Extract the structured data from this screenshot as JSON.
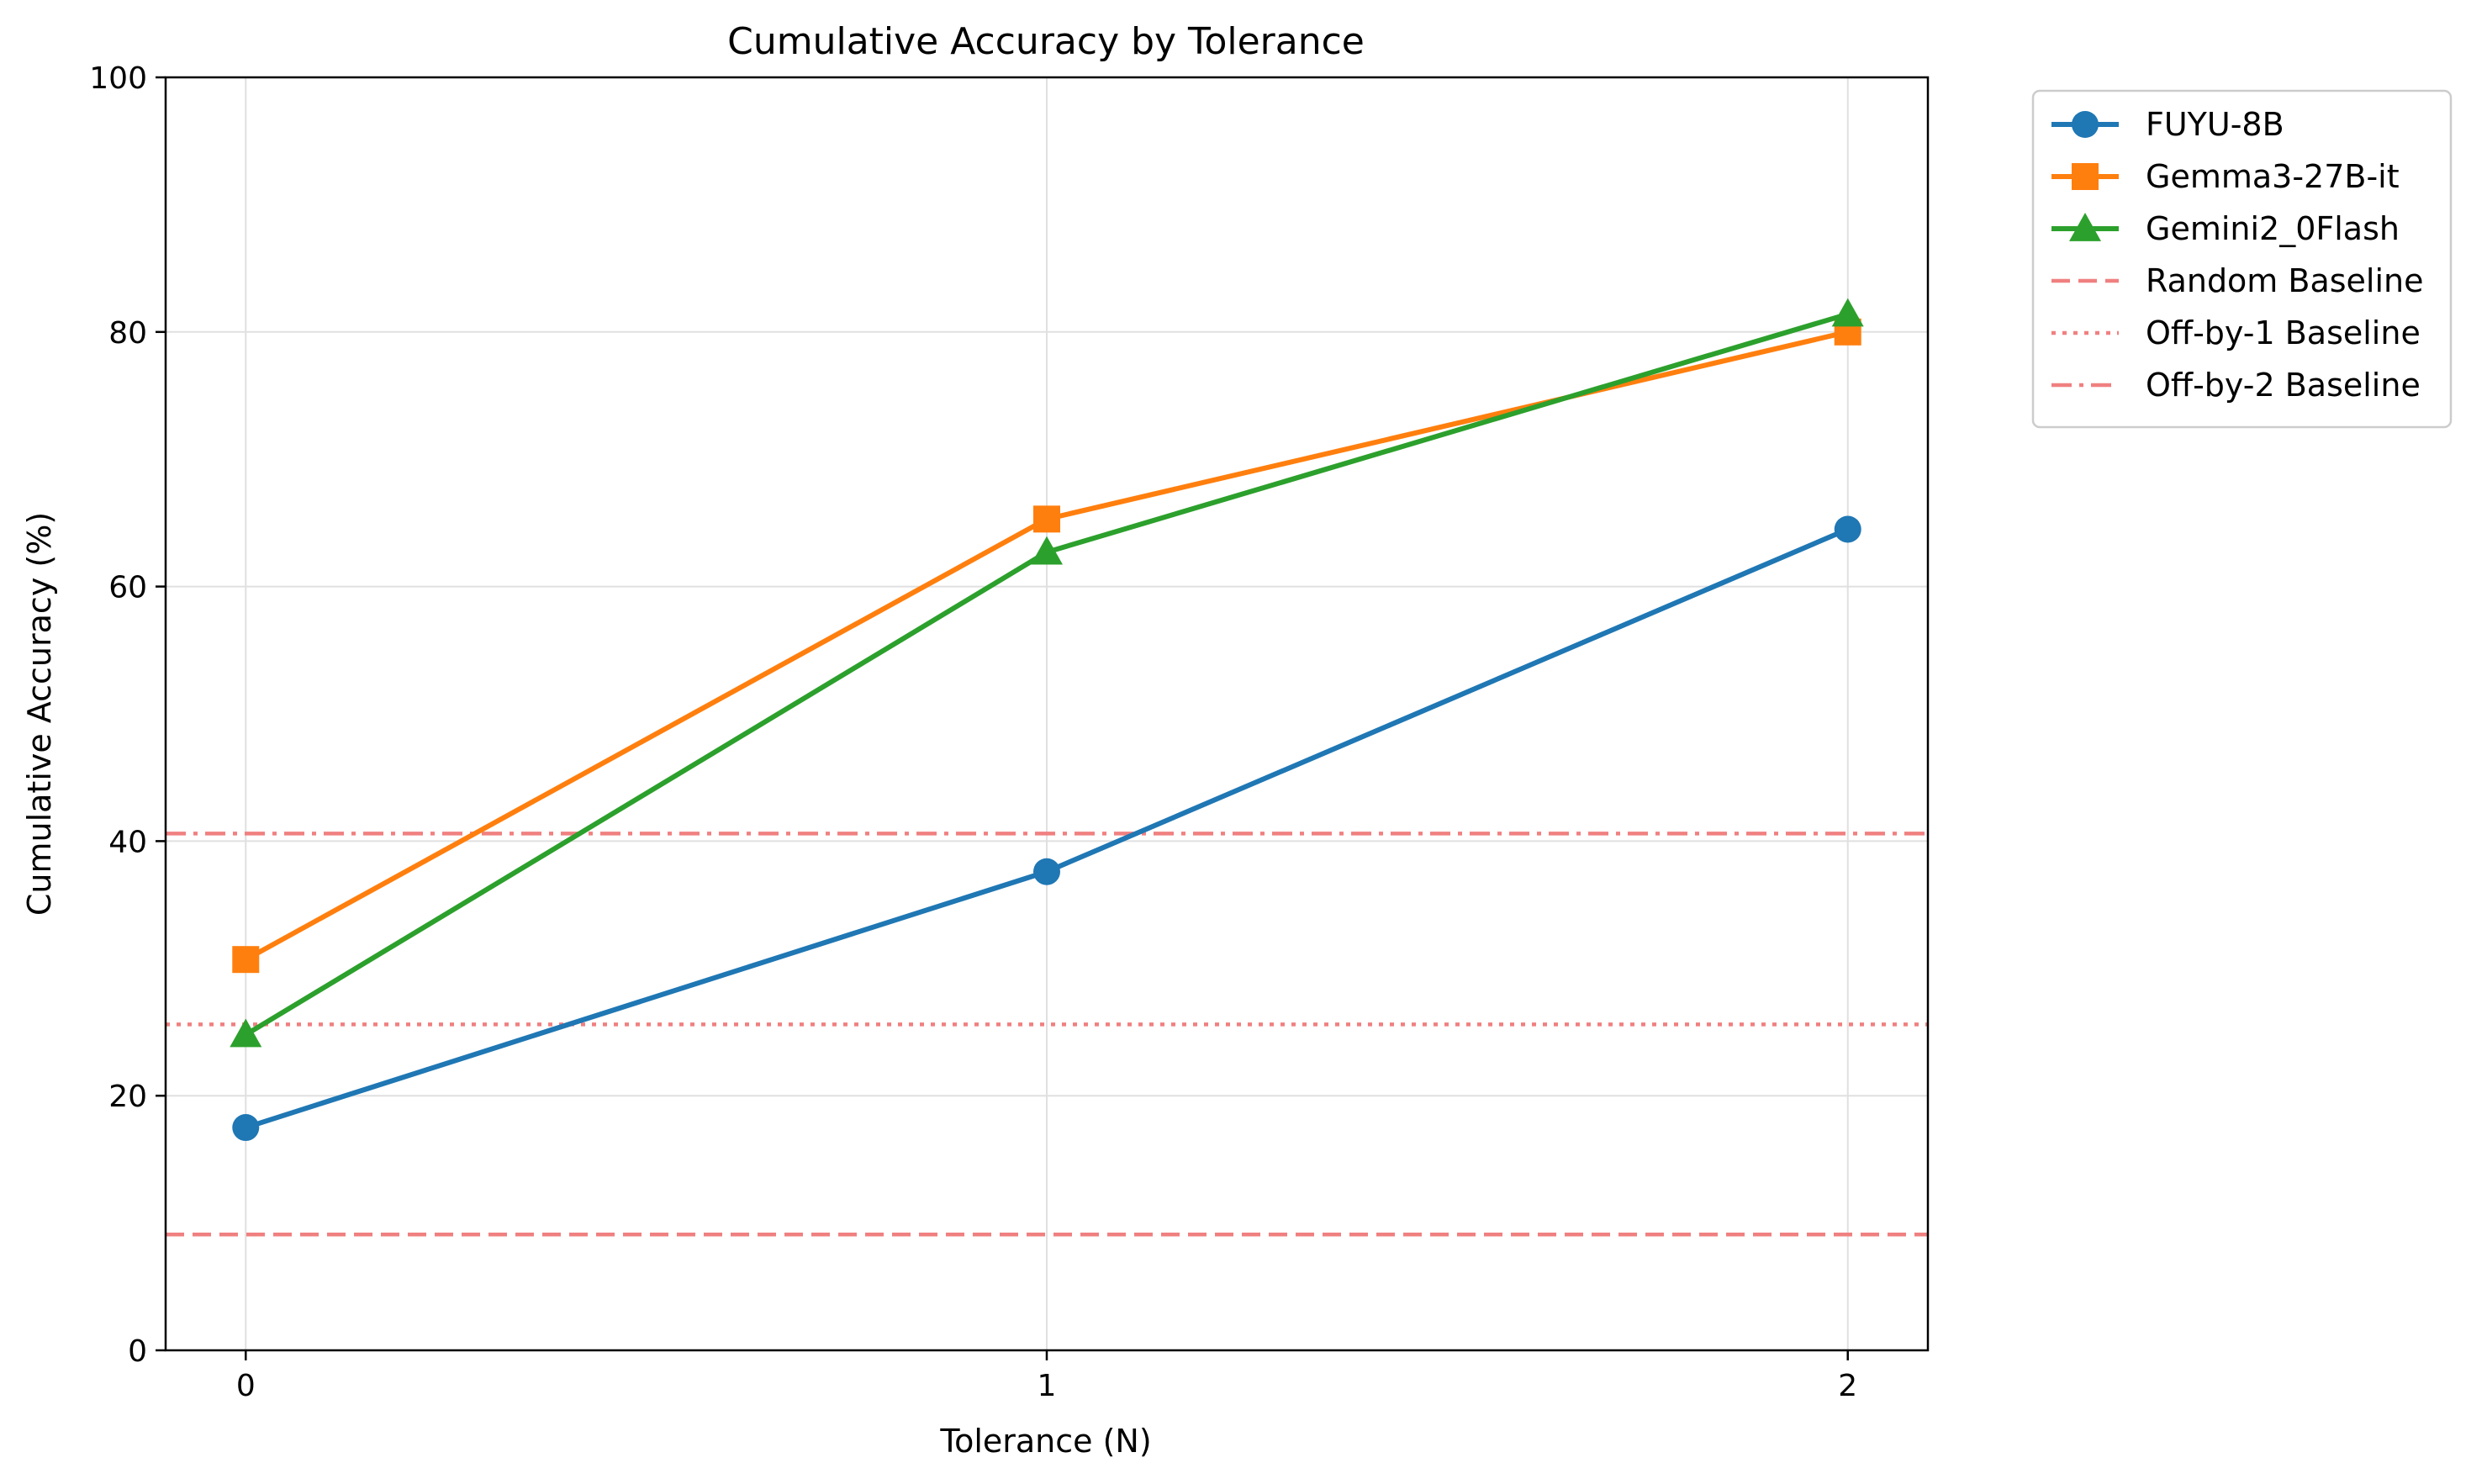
{
  "chart_data": {
    "type": "line",
    "title": "Cumulative Accuracy by Tolerance",
    "xlabel": "Tolerance (N)",
    "ylabel": "Cumulative Accuracy (%)",
    "x": [
      0,
      1,
      2
    ],
    "x_ticks": [
      "0",
      "1",
      "2"
    ],
    "xlim": [
      -0.1,
      2.1
    ],
    "ylim": [
      0,
      100
    ],
    "y_ticks": [
      "0",
      "20",
      "40",
      "60",
      "80",
      "100"
    ],
    "grid": true,
    "legend_position": "outside-top-right",
    "series": [
      {
        "name": "FUYU-8B",
        "values": [
          17.5,
          37.6,
          64.5
        ],
        "color": "#1f77b4",
        "marker": "circle"
      },
      {
        "name": "Gemma3-27B-it",
        "values": [
          30.7,
          65.3,
          80.0
        ],
        "color": "#ff7f0e",
        "marker": "square"
      },
      {
        "name": "Gemini2_0Flash",
        "values": [
          24.8,
          62.7,
          81.4
        ],
        "color": "#2ca02c",
        "marker": "triangle"
      }
    ],
    "baselines": [
      {
        "name": "Random Baseline",
        "value": 9.1,
        "style": "dashed",
        "color": "#f08080"
      },
      {
        "name": "Off-by-1 Baseline",
        "value": 25.6,
        "style": "dotted",
        "color": "#f08080"
      },
      {
        "name": "Off-by-2 Baseline",
        "value": 40.6,
        "style": "dashdot",
        "color": "#f08080"
      }
    ]
  }
}
